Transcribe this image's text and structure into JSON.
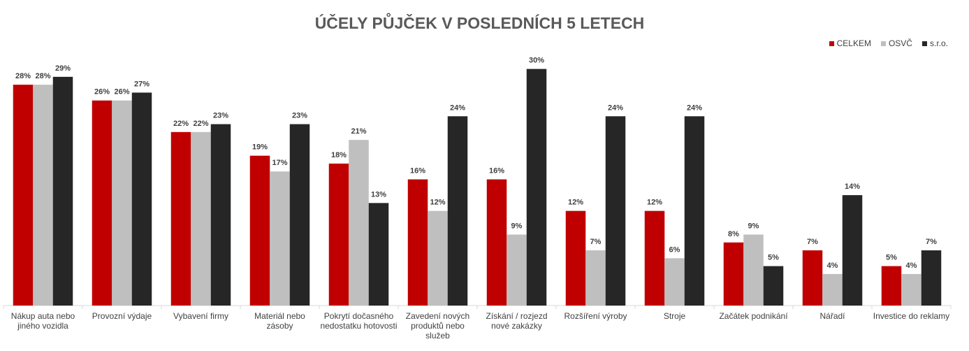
{
  "chart_data": {
    "type": "bar",
    "title": "ÚČELY PŮJČEK V POSLEDNÍCH 5 LETECH",
    "categories": [
      [
        "Nákup auta nebo",
        "jiného vozidla"
      ],
      [
        "Provozní výdaje"
      ],
      [
        "Vybavení firmy"
      ],
      [
        "Materiál nebo",
        "zásoby"
      ],
      [
        "Pokrytí dočasného",
        "nedostatku hotovosti"
      ],
      [
        "Zavedení nových",
        "produktů nebo",
        "služeb"
      ],
      [
        "Získání / rozjezd",
        "nové zakázky"
      ],
      [
        "Rozšíření výroby"
      ],
      [
        "Stroje"
      ],
      [
        "Začátek podnikání"
      ],
      [
        "Nářadí"
      ],
      [
        "Investice do reklamy"
      ]
    ],
    "series": [
      {
        "name": "CELKEM",
        "color": "#c00000",
        "values": [
          28,
          26,
          22,
          19,
          18,
          16,
          16,
          12,
          12,
          8,
          7,
          5
        ]
      },
      {
        "name": "OSVČ",
        "color": "#bfbfbf",
        "values": [
          28,
          26,
          22,
          17,
          21,
          12,
          9,
          7,
          6,
          9,
          4,
          4
        ]
      },
      {
        "name": "s.r.o.",
        "color": "#262626",
        "values": [
          29,
          27,
          23,
          23,
          13,
          24,
          30,
          24,
          24,
          5,
          14,
          7
        ]
      }
    ],
    "value_suffix": "%",
    "ylim": [
      0,
      30
    ],
    "legend_position": "top-right",
    "grid": false
  }
}
